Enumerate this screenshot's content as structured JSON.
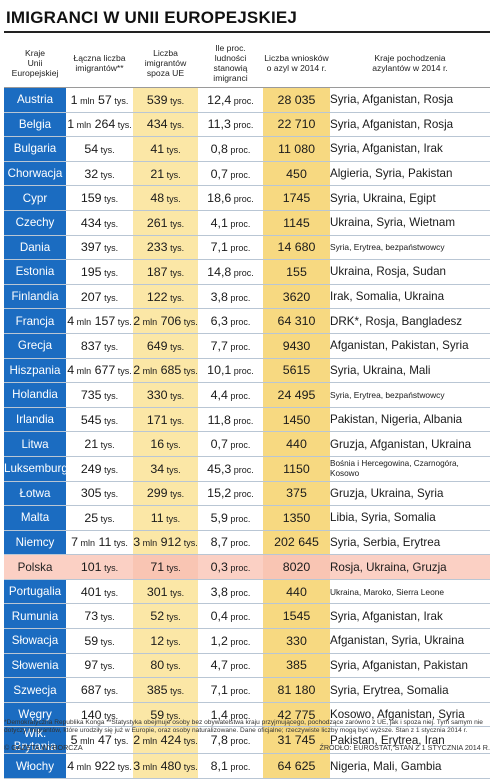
{
  "title": "IMIGRANCI W UNII EUROPEJSKIEJ",
  "headers": [
    "Kraje\nUnii Europejskiej",
    "Łączna liczba\nimigrantów**",
    "Liczba imigrantów\nspoza UE",
    "Ile proc. ludności\nstanowią imigranci",
    "Liczba wniosków\no azyl w 2014 r.",
    "Kraje pochodzenia\nazylantów w 2014 r."
  ],
  "rows": [
    {
      "country": "Austria",
      "total": "1 mln 57 tys.",
      "nonEu": "539 tys.",
      "pct": "12,4 proc.",
      "asylum": "28 035",
      "origins": "Syria, Afganistan, Rosja"
    },
    {
      "country": "Belgia",
      "total": "1 mln 264 tys.",
      "nonEu": "434 tys.",
      "pct": "11,3 proc.",
      "asylum": "22 710",
      "origins": "Syria, Afganistan, Rosja"
    },
    {
      "country": "Bulgaria",
      "total": "54 tys.",
      "nonEu": "41 tys.",
      "pct": "0,8 proc.",
      "asylum": "11 080",
      "origins": "Syria, Afganistan, Irak"
    },
    {
      "country": "Chorwacja",
      "total": "32 tys.",
      "nonEu": "21 tys.",
      "pct": "0,7 proc.",
      "asylum": "450",
      "origins": "Algieria, Syria, Pakistan"
    },
    {
      "country": "Cypr",
      "total": "159 tys.",
      "nonEu": "48 tys.",
      "pct": "18,6 proc.",
      "asylum": "1745",
      "origins": "Syria, Ukraina, Egipt"
    },
    {
      "country": "Czechy",
      "total": "434 tys.",
      "nonEu": "261 tys.",
      "pct": "4,1 proc.",
      "asylum": "1145",
      "origins": "Ukraina, Syria, Wietnam"
    },
    {
      "country": "Dania",
      "total": "397 tys.",
      "nonEu": "233 tys.",
      "pct": "7,1 proc.",
      "asylum": "14 680",
      "origins": "Syria, Erytrea, bezpaństwowcy"
    },
    {
      "country": "Estonia",
      "total": "195 tys.",
      "nonEu": "187 tys.",
      "pct": "14,8 proc.",
      "asylum": "155",
      "origins": "Ukraina, Rosja, Sudan"
    },
    {
      "country": "Finlandia",
      "total": "207 tys.",
      "nonEu": "122 tys.",
      "pct": "3,8 proc.",
      "asylum": "3620",
      "origins": "Irak, Somalia, Ukraina"
    },
    {
      "country": "Francja",
      "total": "4 mln 157 tys.",
      "nonEu": "2 mln 706 tys.",
      "pct": "6,3 proc.",
      "asylum": "64 310",
      "origins": "DRK*, Rosja, Bangladesz"
    },
    {
      "country": "Grecja",
      "total": "837 tys.",
      "nonEu": "649 tys.",
      "pct": "7,7 proc.",
      "asylum": "9430",
      "origins": "Afganistan, Pakistan, Syria"
    },
    {
      "country": "Hiszpania",
      "total": "4 mln 677 tys.",
      "nonEu": "2 mln 685 tys.",
      "pct": "10,1 proc.",
      "asylum": "5615",
      "origins": "Syria, Ukraina, Mali"
    },
    {
      "country": "Holandia",
      "total": "735 tys.",
      "nonEu": "330 tys.",
      "pct": "4,4 proc.",
      "asylum": "24 495",
      "origins": "Syria, Erytrea, bezpaństwowcy"
    },
    {
      "country": "Irlandia",
      "total": "545 tys.",
      "nonEu": "171 tys.",
      "pct": "11,8 proc.",
      "asylum": "1450",
      "origins": "Pakistan, Nigeria, Albania"
    },
    {
      "country": "Litwa",
      "total": "21 tys.",
      "nonEu": "16 tys.",
      "pct": "0,7 proc.",
      "asylum": "440",
      "origins": "Gruzja, Afganistan, Ukraina"
    },
    {
      "country": "Luksemburg",
      "total": "249 tys.",
      "nonEu": "34 tys.",
      "pct": "45,3 proc.",
      "asylum": "1150",
      "origins": "Bośnia i Hercegowina, Czarnogóra, Kosowo"
    },
    {
      "country": "Łotwa",
      "total": "305 tys.",
      "nonEu": "299 tys.",
      "pct": "15,2 proc.",
      "asylum": "375",
      "origins": "Gruzja, Ukraina, Syria"
    },
    {
      "country": "Malta",
      "total": "25 tys.",
      "nonEu": "11 tys.",
      "pct": "5,9 proc.",
      "asylum": "1350",
      "origins": "Libia, Syria, Somalia"
    },
    {
      "country": "Niemcy",
      "total": "7 mln 11 tys.",
      "nonEu": "3 mln 912 tys.",
      "pct": "8,7 proc.",
      "asylum": "202 645",
      "origins": "Syria, Serbia, Erytrea"
    },
    {
      "country": "Polska",
      "total": "101 tys.",
      "nonEu": "71 tys.",
      "pct": "0,3 proc.",
      "asylum": "8020",
      "origins": "Rosja, Ukraina, Gruzja"
    },
    {
      "country": "Portugalia",
      "total": "401 tys.",
      "nonEu": "301 tys.",
      "pct": "3,8 proc.",
      "asylum": "440",
      "origins": "Ukraina, Maroko, Sierra Leone"
    },
    {
      "country": "Rumunia",
      "total": "73 tys.",
      "nonEu": "52 tys.",
      "pct": "0,4 proc.",
      "asylum": "1545",
      "origins": "Syria, Afganistan, Irak"
    },
    {
      "country": "Słowacja",
      "total": "59 tys.",
      "nonEu": "12 tys.",
      "pct": "1,2 proc.",
      "asylum": "330",
      "origins": "Afganistan, Syria, Ukraina"
    },
    {
      "country": "Słowenia",
      "total": "97 tys.",
      "nonEu": "80 tys.",
      "pct": "4,7 proc.",
      "asylum": "385",
      "origins": "Syria, Afganistan, Pakistan"
    },
    {
      "country": "Szwecja",
      "total": "687 tys.",
      "nonEu": "385 tys.",
      "pct": "7,1 proc.",
      "asylum": "81 180",
      "origins": "Syria, Erytrea, Somalia"
    },
    {
      "country": "Węgry",
      "total": "140 tys.",
      "nonEu": "59 tys.",
      "pct": "1,4 proc.",
      "asylum": "42 775",
      "origins": "Kosowo, Afganistan, Syria"
    },
    {
      "country": "Wlk. Brytania",
      "total": "5 mln 47 tys.",
      "nonEu": "2 mln 424 tys.",
      "pct": "7,8 proc.",
      "asylum": "31 745",
      "origins": "Pakistan, Erytrea, Iran"
    },
    {
      "country": "Włochy",
      "total": "4 mln 922 tys.",
      "nonEu": "3 mln 480 tys.",
      "pct": "8,1 proc.",
      "asylum": "64 625",
      "origins": "Nigeria, Mali, Gambia"
    }
  ],
  "highlight_country": "Polska",
  "footnote": "*Demokratyczna Republika Konga   **Statystyka obejmuje osoby bez obywatelstwa kraju przyjmującego, pochodzące zarówno z UE, jak i spoza niej. Tym samym nie dotyczy imigrantów, które urodziły się już w Europie, oraz osoby naturalizowane. Dane oficjalne; rzeczywiste liczby mogą być wyższe. Stan z 1 stycznia 2014 r.",
  "footer_left": "© GAZETA WYBORCZA",
  "footer_right": "ŹRÓDŁO: EUROSTAT, STAN Z 1 STYCZNIA 2014 R.",
  "colors": {
    "country_bg": "#1b6cc1",
    "asylum_bg": "#fbe7a6",
    "highlight_bg": "#fbd0c4"
  },
  "chart_data": {
    "type": "table",
    "title": "IMIGRANCI W UNII EUROPEJSKIEJ",
    "columns": [
      "Kraje Unii Europejskiej",
      "Łączna liczba imigrantów**",
      "Liczba imigrantów spoza UE",
      "Ile proc. ludności stanowią imigranci",
      "Liczba wniosków o azyl w 2014 r.",
      "Kraje pochodzenia azylantów w 2014 r."
    ],
    "pct_values": [
      12.4,
      11.3,
      0.8,
      0.7,
      18.6,
      4.1,
      7.1,
      14.8,
      3.8,
      6.3,
      7.7,
      10.1,
      4.4,
      11.8,
      0.7,
      45.3,
      15.2,
      5.9,
      8.7,
      0.3,
      3.8,
      0.4,
      1.2,
      4.7,
      7.1,
      1.4,
      7.8,
      8.1
    ],
    "asylum_values": [
      28035,
      22710,
      11080,
      450,
      1745,
      1145,
      14680,
      155,
      3620,
      64310,
      9430,
      5615,
      24495,
      1450,
      440,
      1150,
      375,
      1350,
      202645,
      8020,
      440,
      1545,
      330,
      385,
      81180,
      42775,
      31745,
      64625
    ]
  }
}
